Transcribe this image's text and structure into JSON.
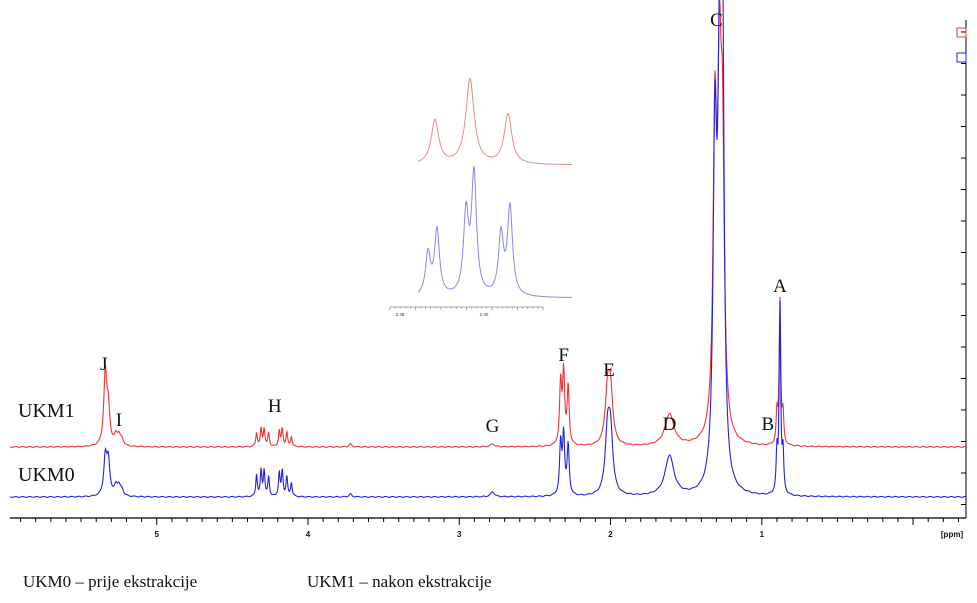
{
  "chart_data": {
    "type": "line",
    "xlabel": "[ppm]",
    "x_reversed": true,
    "xlim": [
      5.97,
      -0.35
    ],
    "x_ticks": [
      5,
      4,
      3,
      2,
      1
    ],
    "series": [
      {
        "name": "UKM1",
        "color": "#ee3333",
        "peaks": [
          {
            "ppm": 5.34,
            "height": 72,
            "width": 0.012
          },
          {
            "ppm": 5.32,
            "height": 34,
            "width": 0.012
          },
          {
            "ppm": 5.27,
            "height": 10,
            "width": 0.012
          },
          {
            "ppm": 5.25,
            "height": 9,
            "width": 0.012
          },
          {
            "ppm": 5.23,
            "height": 6,
            "width": 0.012
          },
          {
            "ppm": 4.34,
            "height": 14,
            "width": 0.006
          },
          {
            "ppm": 4.31,
            "height": 18,
            "width": 0.006
          },
          {
            "ppm": 4.29,
            "height": 18,
            "width": 0.006
          },
          {
            "ppm": 4.26,
            "height": 14,
            "width": 0.006
          },
          {
            "ppm": 4.19,
            "height": 16,
            "width": 0.006
          },
          {
            "ppm": 4.17,
            "height": 18,
            "width": 0.006
          },
          {
            "ppm": 4.14,
            "height": 14,
            "width": 0.006
          },
          {
            "ppm": 4.11,
            "height": 10,
            "width": 0.006
          },
          {
            "ppm": 3.72,
            "height": 3,
            "width": 0.01
          },
          {
            "ppm": 2.78,
            "height": 3,
            "width": 0.015
          },
          {
            "ppm": 2.33,
            "height": 62,
            "width": 0.008
          },
          {
            "ppm": 2.31,
            "height": 72,
            "width": 0.008
          },
          {
            "ppm": 2.28,
            "height": 58,
            "width": 0.008
          },
          {
            "ppm": 2.02,
            "height": 50,
            "width": 0.018
          },
          {
            "ppm": 2.0,
            "height": 50,
            "width": 0.018
          },
          {
            "ppm": 1.61,
            "height": 32,
            "width": 0.035
          },
          {
            "ppm": 1.31,
            "height": 300,
            "width": 0.014
          },
          {
            "ppm": 1.28,
            "height": 310,
            "width": 0.014
          },
          {
            "ppm": 1.26,
            "height": 255,
            "width": 0.014
          },
          {
            "ppm": 0.9,
            "height": 30,
            "width": 0.006
          },
          {
            "ppm": 0.88,
            "height": 145,
            "width": 0.006
          },
          {
            "ppm": 0.86,
            "height": 30,
            "width": 0.006
          }
        ]
      },
      {
        "name": "UKM0",
        "color": "#2222dd",
        "peaks": [
          {
            "ppm": 5.34,
            "height": 38,
            "width": 0.012
          },
          {
            "ppm": 5.32,
            "height": 34,
            "width": 0.012
          },
          {
            "ppm": 5.27,
            "height": 10,
            "width": 0.012
          },
          {
            "ppm": 5.25,
            "height": 9,
            "width": 0.012
          },
          {
            "ppm": 5.23,
            "height": 6,
            "width": 0.012
          },
          {
            "ppm": 4.34,
            "height": 22,
            "width": 0.006
          },
          {
            "ppm": 4.31,
            "height": 26,
            "width": 0.006
          },
          {
            "ppm": 4.29,
            "height": 26,
            "width": 0.006
          },
          {
            "ppm": 4.26,
            "height": 20,
            "width": 0.006
          },
          {
            "ppm": 4.19,
            "height": 24,
            "width": 0.006
          },
          {
            "ppm": 4.17,
            "height": 26,
            "width": 0.006
          },
          {
            "ppm": 4.14,
            "height": 20,
            "width": 0.006
          },
          {
            "ppm": 4.11,
            "height": 14,
            "width": 0.006
          },
          {
            "ppm": 3.72,
            "height": 3,
            "width": 0.01
          },
          {
            "ppm": 2.78,
            "height": 5,
            "width": 0.015
          },
          {
            "ppm": 2.33,
            "height": 52,
            "width": 0.008
          },
          {
            "ppm": 2.31,
            "height": 60,
            "width": 0.008
          },
          {
            "ppm": 2.28,
            "height": 50,
            "width": 0.008
          },
          {
            "ppm": 2.02,
            "height": 58,
            "width": 0.018
          },
          {
            "ppm": 2.0,
            "height": 58,
            "width": 0.018
          },
          {
            "ppm": 1.61,
            "height": 40,
            "width": 0.035
          },
          {
            "ppm": 1.31,
            "height": 330,
            "width": 0.014
          },
          {
            "ppm": 1.28,
            "height": 340,
            "width": 0.014
          },
          {
            "ppm": 1.26,
            "height": 445,
            "width": 0.012
          },
          {
            "ppm": 0.9,
            "height": 40,
            "width": 0.006
          },
          {
            "ppm": 0.88,
            "height": 190,
            "width": 0.006
          },
          {
            "ppm": 0.86,
            "height": 40,
            "width": 0.006
          }
        ]
      }
    ],
    "peak_labels": [
      {
        "text": "A",
        "ppm": 0.88
      },
      {
        "text": "B",
        "ppm": 0.96
      },
      {
        "text": "C",
        "ppm": 1.3
      },
      {
        "text": "D",
        "ppm": 1.61
      },
      {
        "text": "E",
        "ppm": 2.01
      },
      {
        "text": "F",
        "ppm": 2.31
      },
      {
        "text": "G",
        "ppm": 2.78
      },
      {
        "text": "H",
        "ppm": 4.22
      },
      {
        "text": "I",
        "ppm": 5.25
      },
      {
        "text": "J",
        "ppm": 5.35
      }
    ],
    "inset": {
      "x_ticks": [
        "2.35",
        "2.30"
      ],
      "series": [
        {
          "name": "UKM1",
          "color": "#ee8888"
        },
        {
          "name": "UKM0",
          "color": "#8888ee"
        }
      ]
    }
  },
  "captions": {
    "ukm0": "UKM0 – prije ekstrakcije",
    "ukm1": "UKM1 – nakon ekstrakcije"
  },
  "legend_markers": [
    "#ee3333",
    "#2222dd"
  ]
}
